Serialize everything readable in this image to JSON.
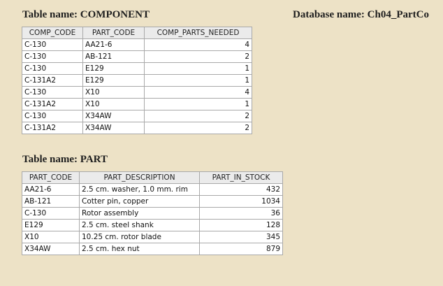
{
  "component_table": {
    "heading": "Table name: COMPONENT",
    "columns": [
      "COMP_CODE",
      "PART_CODE",
      "COMP_PARTS_NEEDED"
    ],
    "rows": [
      [
        "C-130",
        "AA21-6",
        "4"
      ],
      [
        "C-130",
        "AB-121",
        "2"
      ],
      [
        "C-130",
        "E129",
        "1"
      ],
      [
        "C-131A2",
        "E129",
        "1"
      ],
      [
        "C-130",
        "X10",
        "4"
      ],
      [
        "C-131A2",
        "X10",
        "1"
      ],
      [
        "C-130",
        "X34AW",
        "2"
      ],
      [
        "C-131A2",
        "X34AW",
        "2"
      ]
    ]
  },
  "database_name": "Database name: Ch04_PartCo",
  "part_table": {
    "heading": "Table name: PART",
    "columns": [
      "PART_CODE",
      "PART_DESCRIPTION",
      "PART_IN_STOCK"
    ],
    "rows": [
      [
        "AA21-6",
        "2.5 cm. washer, 1.0 mm. rim",
        "432"
      ],
      [
        "AB-121",
        "Cotter pin, copper",
        "1034"
      ],
      [
        "C-130",
        "Rotor assembly",
        "36"
      ],
      [
        "E129",
        "2.5 cm. steel shank",
        "128"
      ],
      [
        "X10",
        "10.25 cm. rotor blade",
        "345"
      ],
      [
        "X34AW",
        "2.5 cm. hex nut",
        "879"
      ]
    ]
  },
  "colors": {
    "page_background": "#ede2c6",
    "header_background": "#ebebeb",
    "cell_background": "#ffffff",
    "grid_line": "#a9a9a9"
  }
}
